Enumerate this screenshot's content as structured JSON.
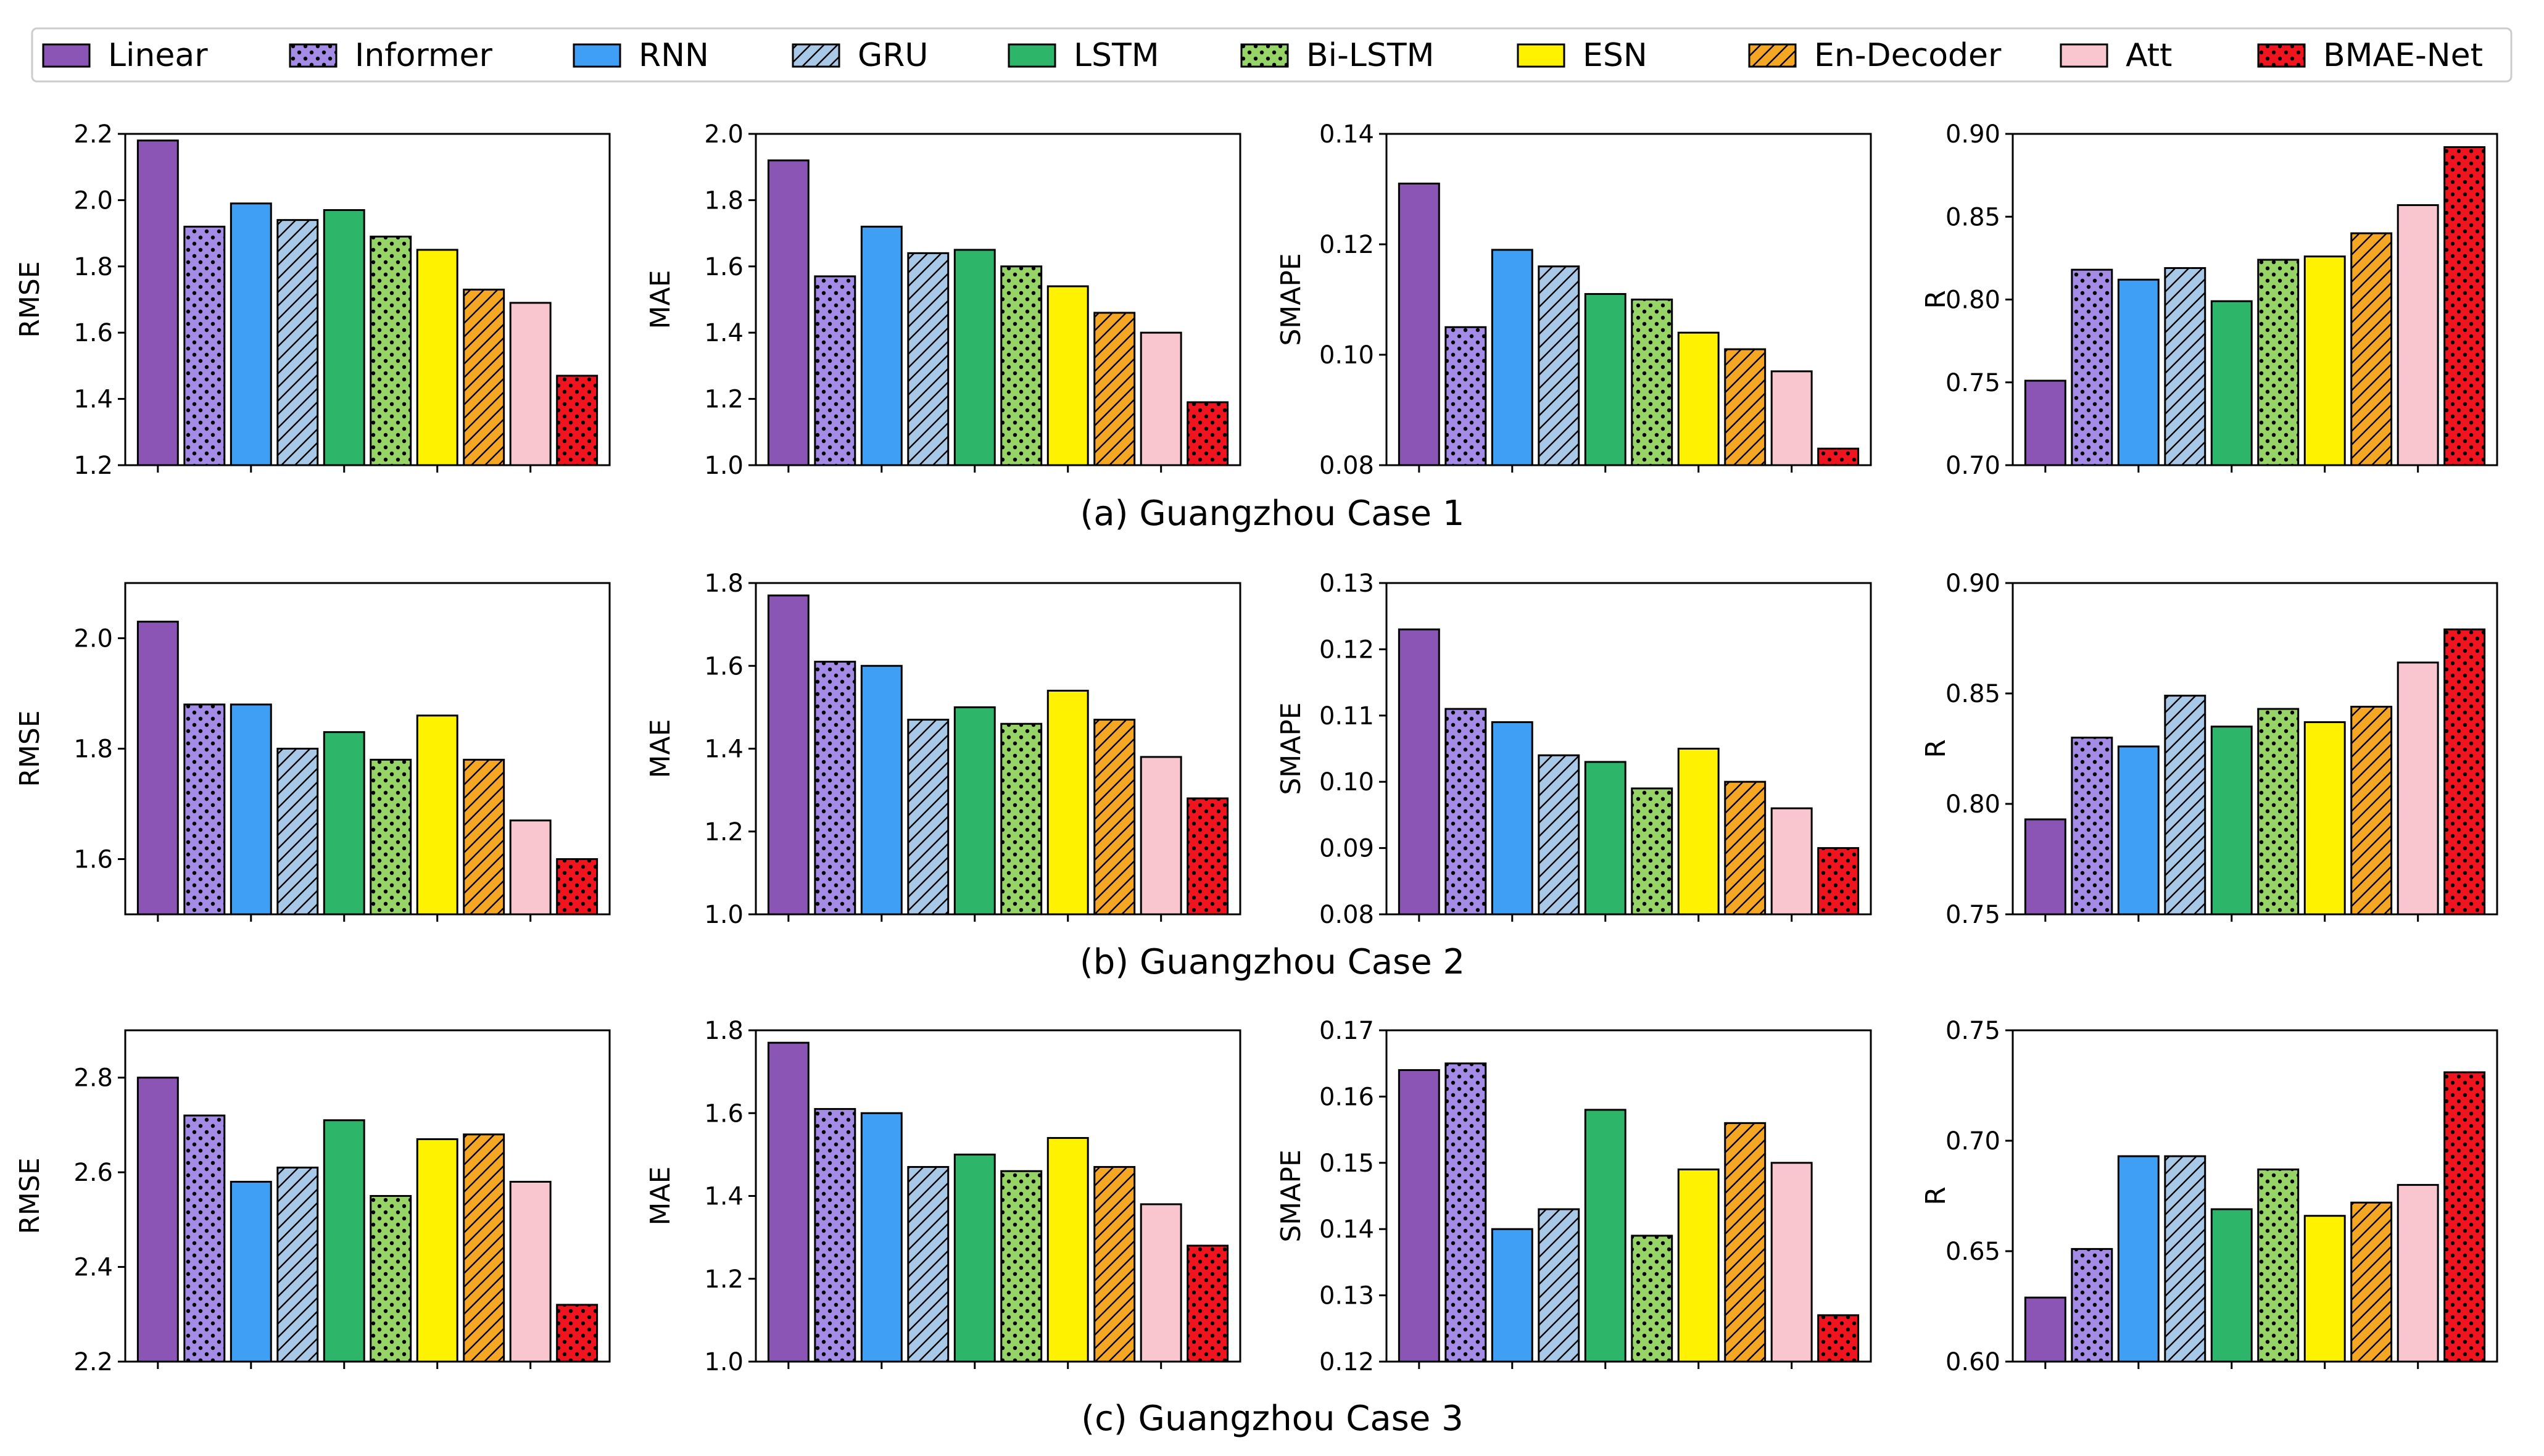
{
  "chart_data": {
    "type": "bar",
    "categories": [
      "Linear",
      "Informer",
      "RNN",
      "GRU",
      "LSTM",
      "Bi-LSTM",
      "ESN",
      "En-Decoder",
      "Att",
      "BMAE-Net"
    ],
    "styles": [
      {
        "color": "#8a55b5",
        "pattern": "none"
      },
      {
        "color": "#a48be6",
        "pattern": "dots"
      },
      {
        "color": "#3e9ff5",
        "pattern": "none"
      },
      {
        "color": "#a8c8e8",
        "pattern": "hatch"
      },
      {
        "color": "#2db569",
        "pattern": "none"
      },
      {
        "color": "#97d467",
        "pattern": "dots"
      },
      {
        "color": "#fff200",
        "pattern": "none"
      },
      {
        "color": "#f5a623",
        "pattern": "hatch"
      },
      {
        "color": "#f9c6d0",
        "pattern": "none"
      },
      {
        "color": "#f0141e",
        "pattern": "dots"
      }
    ],
    "rows": [
      {
        "caption": "(a) Guangzhou Case 1",
        "panels": [
          {
            "ylabel": "RMSE",
            "ylim": [
              1.2,
              2.2
            ],
            "yticks": [
              "1.2",
              "1.4",
              "1.6",
              "1.8",
              "2.0",
              "2.2"
            ],
            "values": [
              2.18,
              1.92,
              1.99,
              1.94,
              1.97,
              1.89,
              1.85,
              1.73,
              1.69,
              1.47
            ]
          },
          {
            "ylabel": "MAE",
            "ylim": [
              1.0,
              2.0
            ],
            "yticks": [
              "1.0",
              "1.2",
              "1.4",
              "1.6",
              "1.8",
              "2.0"
            ],
            "values": [
              1.92,
              1.57,
              1.72,
              1.64,
              1.65,
              1.6,
              1.54,
              1.46,
              1.4,
              1.19
            ]
          },
          {
            "ylabel": "SMAPE",
            "ylim": [
              0.08,
              0.14
            ],
            "yticks": [
              "0.08",
              "0.10",
              "0.12",
              "0.14"
            ],
            "values": [
              0.131,
              0.105,
              0.119,
              0.116,
              0.111,
              0.11,
              0.104,
              0.101,
              0.097,
              0.083
            ]
          },
          {
            "ylabel": "R",
            "ylim": [
              0.7,
              0.9
            ],
            "yticks": [
              "0.70",
              "0.75",
              "0.80",
              "0.85",
              "0.90"
            ],
            "values": [
              0.751,
              0.818,
              0.812,
              0.819,
              0.799,
              0.824,
              0.826,
              0.84,
              0.857,
              0.892
            ]
          }
        ]
      },
      {
        "caption": "(b) Guangzhou Case 2",
        "panels": [
          {
            "ylabel": "RMSE",
            "ylim": [
              1.5,
              2.1
            ],
            "yticks": [
              "1.6",
              "1.8",
              "2.0"
            ],
            "values": [
              2.03,
              1.88,
              1.88,
              1.8,
              1.83,
              1.78,
              1.86,
              1.78,
              1.67,
              1.6
            ]
          },
          {
            "ylabel": "MAE",
            "ylim": [
              1.0,
              1.8
            ],
            "yticks": [
              "1.0",
              "1.2",
              "1.4",
              "1.6",
              "1.8"
            ],
            "values": [
              1.77,
              1.61,
              1.6,
              1.47,
              1.5,
              1.46,
              1.54,
              1.47,
              1.38,
              1.28
            ]
          },
          {
            "ylabel": "SMAPE",
            "ylim": [
              0.08,
              0.13
            ],
            "yticks": [
              "0.08",
              "0.09",
              "0.10",
              "0.11",
              "0.12",
              "0.13"
            ],
            "values": [
              0.123,
              0.111,
              0.109,
              0.104,
              0.103,
              0.099,
              0.105,
              0.1,
              0.096,
              0.09
            ]
          },
          {
            "ylabel": "R",
            "ylim": [
              0.75,
              0.9
            ],
            "yticks": [
              "0.75",
              "0.80",
              "0.85",
              "0.90"
            ],
            "values": [
              0.793,
              0.83,
              0.826,
              0.849,
              0.835,
              0.843,
              0.837,
              0.844,
              0.864,
              0.879
            ]
          }
        ]
      },
      {
        "caption": "(c) Guangzhou Case 3",
        "panels": [
          {
            "ylabel": "RMSE",
            "ylim": [
              2.2,
              2.9
            ],
            "yticks": [
              "2.2",
              "2.4",
              "2.6",
              "2.8"
            ],
            "values": [
              2.8,
              2.72,
              2.58,
              2.61,
              2.71,
              2.55,
              2.67,
              2.68,
              2.58,
              2.32
            ]
          },
          {
            "ylabel": "MAE",
            "ylim": [
              1.0,
              1.8
            ],
            "yticks": [
              "1.0",
              "1.2",
              "1.4",
              "1.6",
              "1.8"
            ],
            "values": [
              1.77,
              1.61,
              1.6,
              1.47,
              1.5,
              1.46,
              1.54,
              1.47,
              1.38,
              1.28
            ]
          },
          {
            "ylabel": "SMAPE",
            "ylim": [
              0.12,
              0.17
            ],
            "yticks": [
              "0.12",
              "0.13",
              "0.14",
              "0.15",
              "0.16",
              "0.17"
            ],
            "values": [
              0.164,
              0.165,
              0.14,
              0.143,
              0.158,
              0.139,
              0.149,
              0.156,
              0.15,
              0.127
            ]
          },
          {
            "ylabel": "R",
            "ylim": [
              0.6,
              0.75
            ],
            "yticks": [
              "0.60",
              "0.65",
              "0.70",
              "0.75"
            ],
            "values": [
              0.629,
              0.651,
              0.693,
              0.693,
              0.669,
              0.687,
              0.666,
              0.672,
              0.68,
              0.731
            ]
          }
        ]
      }
    ]
  }
}
